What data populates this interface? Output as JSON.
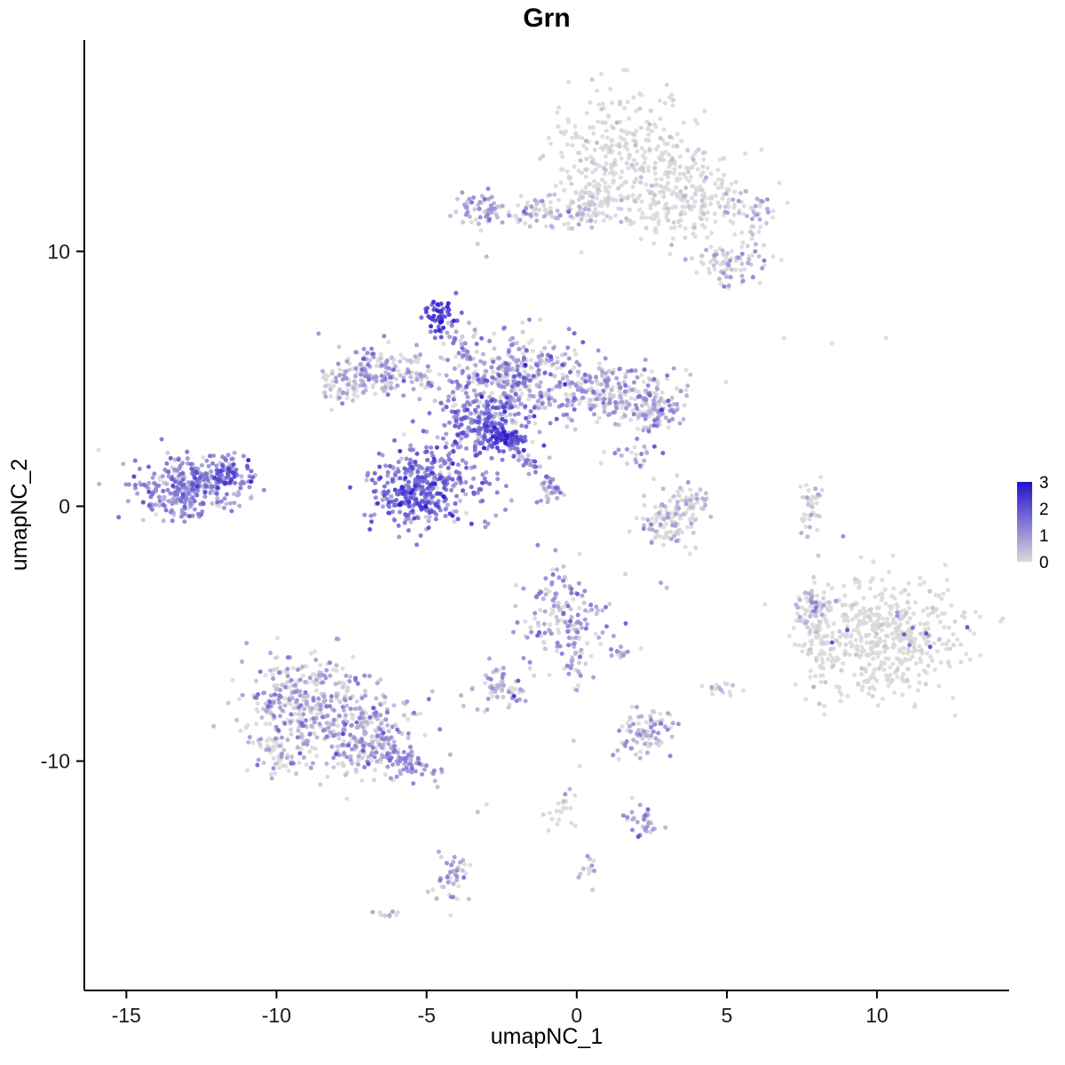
{
  "chart_data": {
    "type": "scatter",
    "title": "Grn",
    "xlabel": "umapNC_1",
    "ylabel": "umapNC_2",
    "xlim": [
      -16.4,
      14.4
    ],
    "ylim": [
      -19.0,
      18.3
    ],
    "x_ticks": [
      -15,
      -10,
      -5,
      0,
      5,
      10
    ],
    "y_ticks": [
      10,
      0,
      -10
    ],
    "grid": false,
    "legend_position": "right",
    "colorbar": {
      "labels": [
        "3",
        "2",
        "1",
        "0"
      ],
      "low": "#D9D9D9",
      "high": "#2611CE",
      "vmin": 0,
      "vmax": 3
    },
    "point_radius": 2.5,
    "seed": 20240607,
    "clusters": [
      {
        "name": "top-main-blob",
        "c": [
          1.6,
          13.8
        ],
        "s": [
          1.15,
          1.25
        ],
        "n": 300,
        "m": 0.1,
        "sd": 0.25,
        "z": 0.6
      },
      {
        "name": "top-right-lobe",
        "c": [
          3.9,
          12.2
        ],
        "s": [
          0.85,
          0.85
        ],
        "n": 190,
        "m": 0.12,
        "sd": 0.3,
        "z": 0.6
      },
      {
        "name": "top-far-right",
        "c": [
          5.8,
          11.7
        ],
        "s": [
          0.5,
          0.45
        ],
        "n": 45,
        "m": 0.5,
        "sd": 0.5,
        "z": 0.35
      },
      {
        "name": "top-right-lower-patch",
        "c": [
          5.1,
          9.5
        ],
        "s": [
          0.65,
          0.45
        ],
        "n": 80,
        "m": 0.6,
        "sd": 0.5,
        "z": 0.3
      },
      {
        "name": "top-left-strip",
        "c": [
          -0.9,
          11.5
        ],
        "s": [
          1.35,
          0.3
        ],
        "n": 120,
        "m": 0.45,
        "sd": 0.45,
        "z": 0.35
      },
      {
        "name": "top-left-strip-end",
        "c": [
          -3.2,
          11.7
        ],
        "s": [
          0.35,
          0.4
        ],
        "n": 45,
        "m": 0.9,
        "sd": 0.5,
        "z": 0.15
      },
      {
        "name": "top-bridge",
        "c": [
          0.6,
          12.0
        ],
        "s": [
          0.5,
          0.5
        ],
        "n": 60,
        "m": 0.2,
        "sd": 0.3,
        "z": 0.55
      },
      {
        "name": "dark-blob",
        "c": [
          -4.65,
          7.5
        ],
        "s": [
          0.3,
          0.4
        ],
        "n": 55,
        "m": 2.3,
        "sd": 0.45,
        "z": 0.02
      },
      {
        "name": "dark-blob-trail",
        "c": [
          -4.05,
          6.5
        ],
        "s": [
          0.5,
          0.13
        ],
        "n": 22,
        "m": 1.2,
        "sd": 0.5,
        "z": 0.1,
        "rot": -55
      },
      {
        "name": "center-main",
        "c": [
          -2.1,
          5.0
        ],
        "s": [
          1.25,
          0.85
        ],
        "n": 400,
        "m": 0.9,
        "sd": 0.65,
        "z": 0.18
      },
      {
        "name": "center-left-arm",
        "c": [
          -6.4,
          5.3
        ],
        "s": [
          0.85,
          0.5
        ],
        "n": 160,
        "m": 0.8,
        "sd": 0.55,
        "z": 0.25
      },
      {
        "name": "center-left-tip",
        "c": [
          -7.8,
          4.7
        ],
        "s": [
          0.5,
          0.4
        ],
        "n": 55,
        "m": 0.6,
        "sd": 0.5,
        "z": 0.35
      },
      {
        "name": "center-right-arm",
        "c": [
          1.5,
          4.4
        ],
        "s": [
          1.0,
          0.6
        ],
        "n": 200,
        "m": 0.75,
        "sd": 0.6,
        "z": 0.3
      },
      {
        "name": "center-right-tip",
        "c": [
          2.6,
          3.8
        ],
        "s": [
          0.45,
          0.45
        ],
        "n": 80,
        "m": 0.9,
        "sd": 0.6,
        "z": 0.2
      },
      {
        "name": "center-dense",
        "c": [
          -3.0,
          3.3
        ],
        "s": [
          0.85,
          0.65
        ],
        "n": 260,
        "m": 1.5,
        "sd": 0.6,
        "z": 0.05
      },
      {
        "name": "center-dark-spot",
        "c": [
          -2.4,
          2.6
        ],
        "s": [
          0.28,
          0.22
        ],
        "n": 45,
        "m": 2.6,
        "sd": 0.35,
        "z": 0
      },
      {
        "name": "center-trail",
        "c": [
          -1.6,
          1.7
        ],
        "s": [
          0.8,
          0.12
        ],
        "n": 45,
        "m": 0.9,
        "sd": 0.5,
        "z": 0.1,
        "rot": -48
      },
      {
        "name": "center-trail-nub",
        "c": [
          -0.95,
          0.6
        ],
        "s": [
          0.25,
          0.2
        ],
        "n": 20,
        "m": 0.8,
        "sd": 0.5,
        "z": 0.15
      },
      {
        "name": "center-southeast-scatter",
        "c": [
          1.9,
          2.4
        ],
        "s": [
          0.45,
          0.5
        ],
        "n": 25,
        "m": 0.9,
        "sd": 0.6,
        "z": 0.2
      },
      {
        "name": "mid-purple",
        "c": [
          -4.9,
          0.8
        ],
        "s": [
          0.95,
          0.85
        ],
        "n": 330,
        "m": 1.5,
        "sd": 0.6,
        "z": 0.04
      },
      {
        "name": "mid-purple-dense",
        "c": [
          -5.6,
          0.3
        ],
        "s": [
          0.5,
          0.5
        ],
        "n": 90,
        "m": 2.0,
        "sd": 0.5,
        "z": 0.02
      },
      {
        "name": "left-cluster",
        "c": [
          -13.0,
          0.7
        ],
        "s": [
          0.95,
          0.6
        ],
        "n": 300,
        "m": 1.2,
        "sd": 0.5,
        "z": 0.06
      },
      {
        "name": "left-cluster-tip",
        "c": [
          -11.6,
          1.3
        ],
        "s": [
          0.45,
          0.35
        ],
        "n": 75,
        "m": 1.5,
        "sd": 0.55,
        "z": 0.04
      },
      {
        "name": "right-crescent",
        "c": [
          3.1,
          -0.5
        ],
        "s": [
          0.5,
          0.6
        ],
        "n": 115,
        "m": 0.5,
        "sd": 0.5,
        "z": 0.4
      },
      {
        "name": "right-crescent-arc",
        "c": [
          3.9,
          0.1
        ],
        "s": [
          0.4,
          0.18
        ],
        "n": 25,
        "m": 0.3,
        "sd": 0.35,
        "z": 0.55,
        "rot": 30
      },
      {
        "name": "right-strip",
        "c": [
          7.8,
          -0.1
        ],
        "s": [
          0.16,
          0.65
        ],
        "n": 40,
        "m": 0.3,
        "sd": 0.4,
        "z": 0.55
      },
      {
        "name": "right-big",
        "c": [
          10.4,
          -5.1
        ],
        "s": [
          1.25,
          1.15
        ],
        "n": 460,
        "m": 0.07,
        "sd": 0.2,
        "z": 0.75
      },
      {
        "name": "right-big-arm",
        "c": [
          8.0,
          -5.2
        ],
        "s": [
          0.35,
          1.0
        ],
        "n": 100,
        "m": 0.15,
        "sd": 0.3,
        "z": 0.65
      },
      {
        "name": "right-big-arm-top",
        "c": [
          7.9,
          -3.9
        ],
        "s": [
          0.3,
          0.35
        ],
        "n": 35,
        "m": 0.6,
        "sd": 0.5,
        "z": 0.3
      },
      {
        "name": "right-big-outliers",
        "c": [
          10.4,
          -5.0
        ],
        "s": [
          1.2,
          1.0
        ],
        "n": 12,
        "m": 1.7,
        "sd": 0.6,
        "z": 0
      },
      {
        "name": "mid-lower",
        "c": [
          -0.4,
          -4.4
        ],
        "s": [
          0.7,
          0.85
        ],
        "n": 160,
        "m": 0.9,
        "sd": 0.65,
        "z": 0.2
      },
      {
        "name": "mid-lower-trail",
        "c": [
          0.0,
          -6.1
        ],
        "s": [
          0.18,
          0.45
        ],
        "n": 20,
        "m": 0.6,
        "sd": 0.5,
        "z": 0.3
      },
      {
        "name": "mid-lower-dots",
        "c": [
          1.3,
          -5.8
        ],
        "s": [
          0.22,
          0.2
        ],
        "n": 12,
        "m": 1.1,
        "sd": 0.5,
        "z": 0.1
      },
      {
        "name": "small-left-mid",
        "c": [
          -2.5,
          -7.1
        ],
        "s": [
          0.45,
          0.4
        ],
        "n": 65,
        "m": 0.8,
        "sd": 0.55,
        "z": 0.25
      },
      {
        "name": "lowerleft-a",
        "c": [
          -9.0,
          -7.6
        ],
        "s": [
          1.05,
          0.85
        ],
        "n": 290,
        "m": 0.7,
        "sd": 0.55,
        "z": 0.3
      },
      {
        "name": "lowerleft-b",
        "c": [
          -7.3,
          -9.0
        ],
        "s": [
          1.0,
          0.8
        ],
        "n": 260,
        "m": 0.8,
        "sd": 0.6,
        "z": 0.25
      },
      {
        "name": "lowerleft-tail",
        "c": [
          -5.8,
          -10.0
        ],
        "s": [
          0.6,
          0.3
        ],
        "n": 85,
        "m": 1.1,
        "sd": 0.5,
        "z": 0.1,
        "rot": -30
      },
      {
        "name": "lowerleft-corner",
        "c": [
          -9.9,
          -9.6
        ],
        "s": [
          0.5,
          0.5
        ],
        "n": 65,
        "m": 0.6,
        "sd": 0.5,
        "z": 0.35
      },
      {
        "name": "small-lower",
        "c": [
          2.3,
          -8.8
        ],
        "s": [
          0.45,
          0.5
        ],
        "n": 85,
        "m": 0.75,
        "sd": 0.55,
        "z": 0.3
      },
      {
        "name": "tiny-right",
        "c": [
          4.9,
          -7.1
        ],
        "s": [
          0.3,
          0.18
        ],
        "n": 15,
        "m": 0.4,
        "sd": 0.4,
        "z": 0.5
      },
      {
        "name": "bottom-strip",
        "c": [
          -0.5,
          -11.9
        ],
        "s": [
          0.2,
          0.5
        ],
        "n": 22,
        "m": 0.4,
        "sd": 0.4,
        "z": 0.45
      },
      {
        "name": "bottom-purple",
        "c": [
          2.3,
          -12.4
        ],
        "s": [
          0.3,
          0.3
        ],
        "n": 32,
        "m": 1.0,
        "sd": 0.5,
        "z": 0.1
      },
      {
        "name": "bottom-tiny",
        "c": [
          0.4,
          -14.2
        ],
        "s": [
          0.25,
          0.3
        ],
        "n": 13,
        "m": 0.5,
        "sd": 0.4,
        "z": 0.3
      },
      {
        "name": "bottom-column",
        "c": [
          -4.1,
          -14.6
        ],
        "s": [
          0.3,
          0.55
        ],
        "n": 45,
        "m": 0.7,
        "sd": 0.5,
        "z": 0.25
      },
      {
        "name": "bottom-left-tiny",
        "c": [
          -6.3,
          -16.1
        ],
        "s": [
          0.3,
          0.15
        ],
        "n": 9,
        "m": 0.4,
        "sd": 0.4,
        "z": 0.4
      }
    ],
    "singles": [
      [
        6.9,
        6.6,
        0
      ],
      [
        8.5,
        6.4,
        0
      ],
      [
        10.3,
        6.6,
        0
      ],
      [
        -0.1,
        -9.2,
        0.3
      ],
      [
        0.1,
        -10.2,
        0
      ],
      [
        -3.3,
        -12.0,
        0.5
      ],
      [
        -3.0,
        -11.7,
        0
      ],
      [
        2.8,
        -3.0,
        1.0
      ],
      [
        3.0,
        -3.2,
        0.5
      ],
      [
        -3.0,
        9.8,
        0.6
      ],
      [
        -3.3,
        10.3,
        0.3
      ]
    ]
  }
}
